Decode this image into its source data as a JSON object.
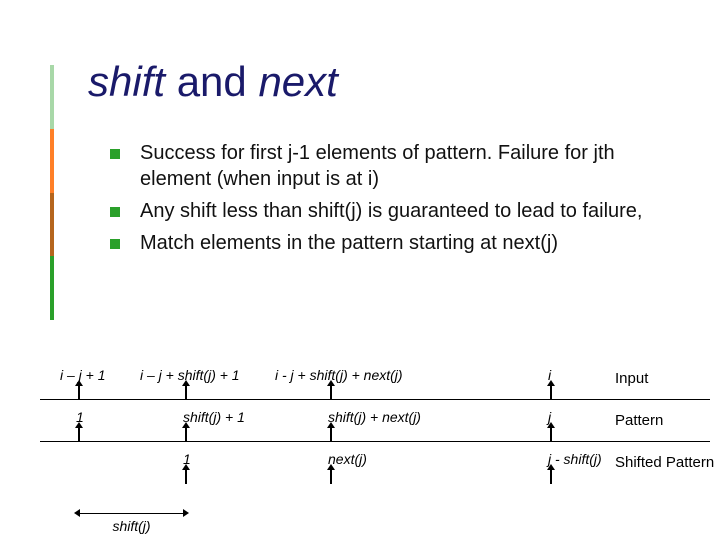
{
  "accent_colors": [
    "#a8d8a8",
    "#ff7f27",
    "#b5651d",
    "#2aa02a"
  ],
  "title": {
    "word1": "shift",
    "word2": " and ",
    "word3": "next"
  },
  "bullets": [
    "Success for first j-1 elements of pattern. Failure for jth element (when input is at i)",
    "Any shift less than shift(j) is guaranteed to lead to failure,",
    "Match elements in the pattern starting at next(j)"
  ],
  "diagram": {
    "cols": {
      "c1": 38,
      "c2": 145,
      "c3": 290,
      "c4": 510
    },
    "row1": {
      "ticks": [
        "i – j + 1",
        "i – j + shift(j) + 1",
        "i - j + shift(j) + next(j)",
        "i"
      ],
      "label": "Input"
    },
    "row2": {
      "ticks": [
        "1",
        "shift(j) + 1",
        "shift(j) + next(j)",
        "j"
      ],
      "label": "Pattern"
    },
    "row3": {
      "ticks": [
        "1",
        "next(j)",
        "j - shift(j)"
      ],
      "label": "Shifted Pattern"
    },
    "shift_arrow_label": "shift(j)"
  }
}
